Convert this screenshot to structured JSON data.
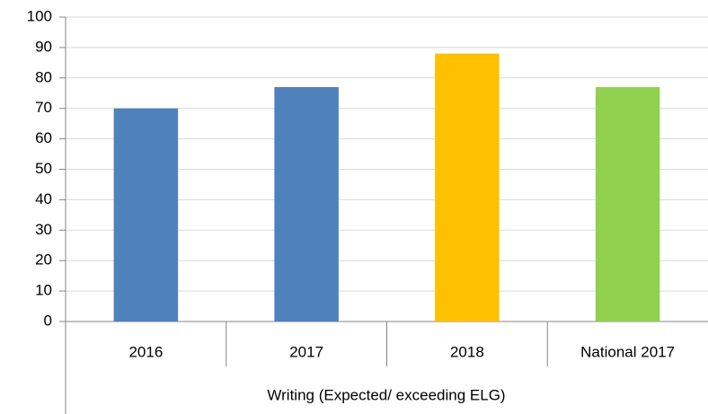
{
  "chart_data": {
    "type": "bar",
    "xlabel": "Writing (Expected/ exceeding ELG)",
    "categories": [
      "2016",
      "2017",
      "2018",
      "National 2017"
    ],
    "values": [
      70,
      77,
      88,
      77
    ],
    "colors": [
      "#4f81bd",
      "#4f81bd",
      "#ffc000",
      "#92d050"
    ],
    "ylim": [
      0,
      100
    ],
    "yticks": [
      0,
      10,
      20,
      30,
      40,
      50,
      60,
      70,
      80,
      90,
      100
    ],
    "grid": true
  }
}
